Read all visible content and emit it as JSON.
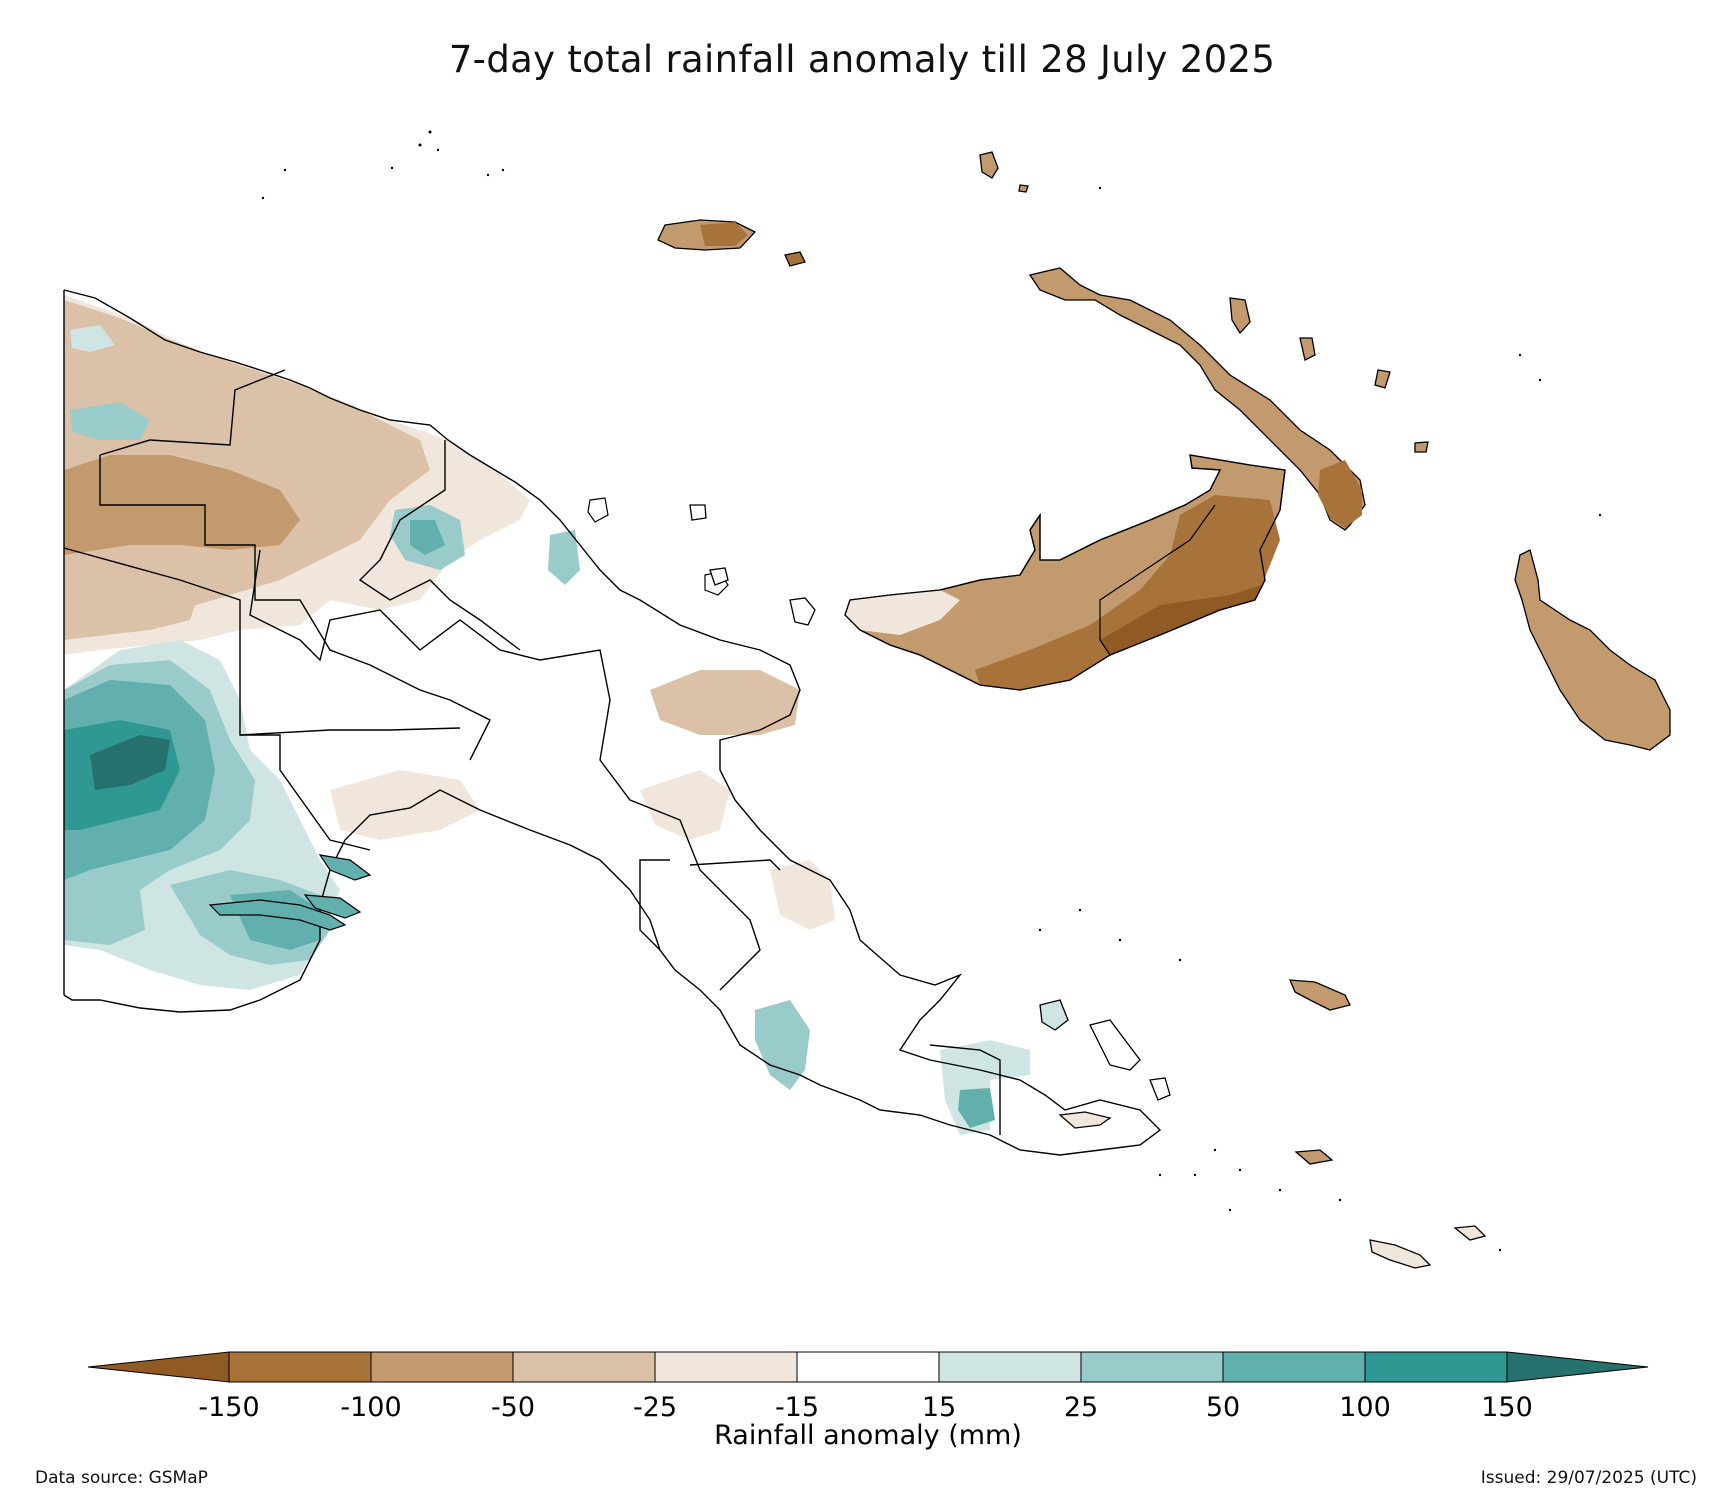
{
  "title": "7-day total rainfall anomaly till 28 July 2025",
  "colorbar": {
    "label": "Rainfall anomaly (mm)",
    "ticks": [
      "-150",
      "-100",
      "-50",
      "-25",
      "-15",
      "15",
      "25",
      "50",
      "100",
      "150"
    ],
    "bins": [
      {
        "label": "< -150",
        "color": "#8f5a24"
      },
      {
        "label": "-150 to -100",
        "color": "#a8733b"
      },
      {
        "label": "-100 to -50",
        "color": "#c29a6d"
      },
      {
        "label": "-50 to -25",
        "color": "#dbc1a7"
      },
      {
        "label": "-25 to -15",
        "color": "#f1e6dc"
      },
      {
        "label": "-15 to 15",
        "color": "#ffffff"
      },
      {
        "label": "15 to 25",
        "color": "#cfe5e4"
      },
      {
        "label": "25 to 50",
        "color": "#99cbca"
      },
      {
        "label": "50 to 100",
        "color": "#62b0ad"
      },
      {
        "label": "100 to 150",
        "color": "#2f9893"
      },
      {
        "label": "> 150",
        "color": "#26706d"
      }
    ]
  },
  "footer": {
    "data_source": "Data source: GSMaP",
    "issued": "Issued: 29/07/2025 (UTC)"
  }
}
